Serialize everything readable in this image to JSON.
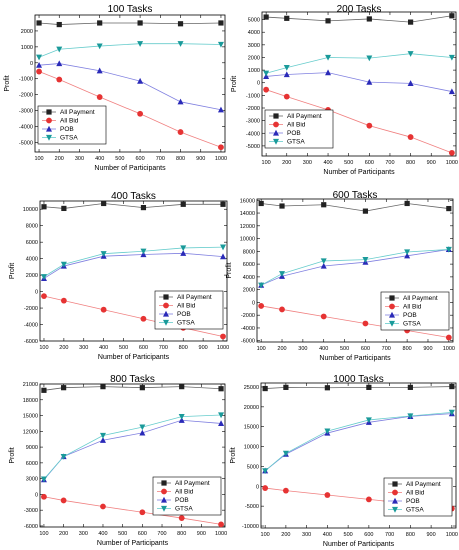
{
  "legend_labels": [
    "All Payment",
    "All Bid",
    "POB",
    "GTSA"
  ],
  "series_colors": {
    "All Payment": "#222222",
    "All Bid": "#e63333",
    "POB": "#2a2ab8",
    "GTSA": "#1a9a9a"
  },
  "line_colors": {
    "All Payment": "#666666",
    "All Bid": "#f08080",
    "POB": "#8080e0",
    "GTSA": "#66cccc"
  },
  "marker_shapes": {
    "All Payment": "square",
    "All Bid": "circle",
    "POB": "triangle-up",
    "GTSA": "triangle-down"
  },
  "chart_data": [
    {
      "type": "line",
      "title": "100 Tasks",
      "xlabel": "Number of Participants",
      "ylabel": "Profit",
      "x": [
        100,
        200,
        400,
        600,
        800,
        1000
      ],
      "xlim": [
        80,
        1020
      ],
      "xticks": [
        100,
        200,
        300,
        400,
        500,
        600,
        700,
        800,
        900,
        1000
      ],
      "ylim": [
        -5600,
        3000
      ],
      "yticks": [
        -5000,
        -4000,
        -3000,
        -2000,
        -1000,
        0,
        1000,
        2000
      ],
      "legend_position": "bottom-left",
      "series": [
        {
          "name": "All Payment",
          "values": [
            2500,
            2400,
            2500,
            2500,
            2450,
            2500
          ]
        },
        {
          "name": "All Bid",
          "values": [
            -550,
            -1050,
            -2150,
            -3200,
            -4350,
            -5300
          ]
        },
        {
          "name": "POB",
          "values": [
            -150,
            -50,
            -500,
            -1150,
            -2450,
            -2950
          ]
        },
        {
          "name": "GTSA",
          "values": [
            350,
            850,
            1050,
            1200,
            1200,
            1150
          ]
        }
      ]
    },
    {
      "type": "line",
      "title": "200 Tasks",
      "xlabel": "Number of Participants",
      "ylabel": "Profit",
      "x": [
        100,
        200,
        400,
        600,
        800,
        1000
      ],
      "xlim": [
        80,
        1020
      ],
      "xticks": [
        100,
        200,
        300,
        400,
        500,
        600,
        700,
        800,
        900,
        1000
      ],
      "ylim": [
        -5800,
        5600
      ],
      "yticks": [
        -5000,
        -4000,
        -3000,
        -2000,
        -1000,
        0,
        1000,
        2000,
        3000,
        4000,
        5000
      ],
      "legend_position": "bottom-left",
      "series": [
        {
          "name": "All Payment",
          "values": [
            5200,
            5100,
            4900,
            5050,
            4800,
            5300
          ]
        },
        {
          "name": "All Bid",
          "values": [
            -550,
            -1100,
            -2150,
            -3400,
            -4300,
            -5550
          ]
        },
        {
          "name": "POB",
          "values": [
            500,
            650,
            800,
            50,
            -50,
            -700
          ]
        },
        {
          "name": "GTSA",
          "values": [
            750,
            1200,
            2000,
            1950,
            2300,
            2000
          ]
        }
      ]
    },
    {
      "type": "line",
      "title": "400 Tasks",
      "xlabel": "Number of Participants",
      "ylabel": "Profit",
      "x": [
        100,
        200,
        400,
        600,
        800,
        1000
      ],
      "xlim": [
        80,
        1020
      ],
      "xticks": [
        100,
        200,
        300,
        400,
        500,
        600,
        700,
        800,
        900,
        1000
      ],
      "ylim": [
        -6000,
        11000
      ],
      "yticks": [
        -6000,
        -4000,
        -2000,
        0,
        2000,
        4000,
        6000,
        8000,
        10000
      ],
      "legend_position": "bottom-right",
      "series": [
        {
          "name": "All Payment",
          "values": [
            10300,
            10100,
            10700,
            10200,
            10600,
            10600
          ]
        },
        {
          "name": "All Bid",
          "values": [
            -550,
            -1100,
            -2200,
            -3300,
            -4400,
            -5450
          ]
        },
        {
          "name": "POB",
          "values": [
            1600,
            3100,
            4300,
            4500,
            4650,
            4250
          ]
        },
        {
          "name": "GTSA",
          "values": [
            1800,
            3300,
            4600,
            4900,
            5300,
            5400
          ]
        }
      ]
    },
    {
      "type": "line",
      "title": "600 Tasks",
      "xlabel": "Number of Participants",
      "ylabel": "Profit",
      "x": [
        100,
        200,
        400,
        600,
        800,
        1000
      ],
      "xlim": [
        80,
        1020
      ],
      "xticks": [
        100,
        200,
        300,
        400,
        500,
        600,
        700,
        800,
        900,
        1000
      ],
      "ylim": [
        -6200,
        16200
      ],
      "yticks": [
        -6000,
        -4000,
        -2000,
        0,
        2000,
        4000,
        6000,
        8000,
        10000,
        12000,
        14000,
        16000
      ],
      "legend_position": "bottom-right",
      "series": [
        {
          "name": "All Payment",
          "values": [
            15500,
            15100,
            15300,
            14300,
            15500,
            14700
          ]
        },
        {
          "name": "All Bid",
          "values": [
            -550,
            -1100,
            -2200,
            -3300,
            -4400,
            -5500
          ]
        },
        {
          "name": "POB",
          "values": [
            2700,
            4100,
            5700,
            6300,
            7300,
            8300
          ]
        },
        {
          "name": "GTSA",
          "values": [
            2700,
            4500,
            6500,
            6700,
            7900,
            8300
          ]
        }
      ]
    },
    {
      "type": "line",
      "title": "800 Tasks",
      "xlabel": "Number of Participants",
      "ylabel": "Profit",
      "x": [
        100,
        200,
        400,
        600,
        800,
        1000
      ],
      "xlim": [
        80,
        1020
      ],
      "xticks": [
        100,
        200,
        300,
        400,
        500,
        600,
        700,
        800,
        900,
        1000
      ],
      "ylim": [
        -6200,
        21000
      ],
      "yticks": [
        -6000,
        -3000,
        0,
        3000,
        6000,
        9000,
        12000,
        15000,
        18000,
        21000
      ],
      "legend_position": "bottom-right",
      "series": [
        {
          "name": "All Payment",
          "values": [
            19800,
            20300,
            20500,
            20300,
            20500,
            20100
          ]
        },
        {
          "name": "All Bid",
          "values": [
            -450,
            -1150,
            -2300,
            -3400,
            -4500,
            -5700
          ]
        },
        {
          "name": "POB",
          "values": [
            2800,
            7200,
            10300,
            11700,
            14100,
            13500
          ]
        },
        {
          "name": "GTSA",
          "values": [
            2900,
            7200,
            11200,
            12800,
            14800,
            15100
          ]
        }
      ]
    },
    {
      "type": "line",
      "title": "1000 Tasks",
      "xlabel": "Number of Participants",
      "ylabel": "Profit",
      "x": [
        100,
        200,
        400,
        600,
        800,
        1000
      ],
      "xlim": [
        80,
        1020
      ],
      "xticks": [
        100,
        200,
        300,
        400,
        500,
        600,
        700,
        800,
        900,
        1000
      ],
      "ylim": [
        -10500,
        26000
      ],
      "yticks": [
        -10000,
        -5000,
        0,
        5000,
        10000,
        15000,
        20000,
        25000
      ],
      "legend_position": "bottom-right",
      "series": [
        {
          "name": "All Payment",
          "values": [
            24600,
            24900,
            24800,
            24900,
            24900,
            25100
          ]
        },
        {
          "name": "All Bid",
          "values": [
            -450,
            -1100,
            -2200,
            -3300,
            -4400,
            -5600
          ]
        },
        {
          "name": "POB",
          "values": [
            3900,
            8100,
            13400,
            16100,
            17600,
            18300
          ]
        },
        {
          "name": "GTSA",
          "values": [
            3900,
            8300,
            13900,
            16700,
            17700,
            18600
          ]
        }
      ]
    }
  ]
}
